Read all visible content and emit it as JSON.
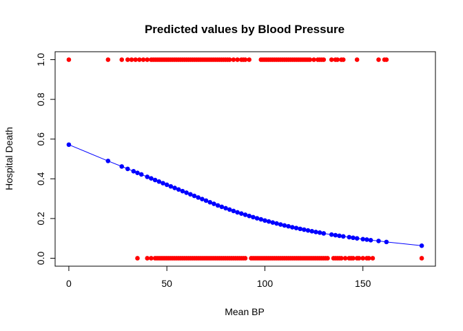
{
  "chart_data": {
    "type": "scatter",
    "title": "Predicted values by Blood Pressure",
    "xlabel": "Mean BP",
    "ylabel": "Hospital Death",
    "xlim": [
      -7,
      187
    ],
    "ylim": [
      -0.04,
      1.04
    ],
    "xticks": [
      "0",
      "50",
      "100",
      "150"
    ],
    "yticks": [
      "0.0",
      "0.2",
      "0.4",
      "0.6",
      "0.8",
      "1.0"
    ],
    "grid": false,
    "legend": "none",
    "colors": {
      "observed": "#ff0000",
      "predicted": "#0000ff",
      "line": "#0000ff"
    },
    "series": [
      {
        "values": [
          [
            0,
            1
          ],
          [
            20,
            1
          ],
          [
            27,
            1
          ],
          [
            30,
            1
          ],
          [
            32,
            1
          ],
          [
            34,
            1
          ],
          [
            36,
            1
          ],
          [
            38,
            1
          ],
          [
            40,
            1
          ],
          [
            42,
            1
          ],
          [
            43,
            1
          ],
          [
            44,
            1
          ],
          [
            45,
            1
          ],
          [
            46,
            1
          ],
          [
            47,
            1
          ],
          [
            48,
            1
          ],
          [
            49,
            1
          ],
          [
            50,
            1
          ],
          [
            51,
            1
          ],
          [
            52,
            1
          ],
          [
            53,
            1
          ],
          [
            54,
            1
          ],
          [
            55,
            1
          ],
          [
            56,
            1
          ],
          [
            57,
            1
          ],
          [
            58,
            1
          ],
          [
            59,
            1
          ],
          [
            60,
            1
          ],
          [
            61,
            1
          ],
          [
            62,
            1
          ],
          [
            63,
            1
          ],
          [
            64,
            1
          ],
          [
            65,
            1
          ],
          [
            66,
            1
          ],
          [
            67,
            1
          ],
          [
            68,
            1
          ],
          [
            69,
            1
          ],
          [
            70,
            1
          ],
          [
            71,
            1
          ],
          [
            72,
            1
          ],
          [
            73,
            1
          ],
          [
            74,
            1
          ],
          [
            75,
            1
          ],
          [
            76,
            1
          ],
          [
            77,
            1
          ],
          [
            78,
            1
          ],
          [
            79,
            1
          ],
          [
            80,
            1
          ],
          [
            81,
            1
          ],
          [
            82,
            1
          ],
          [
            84,
            1
          ],
          [
            86,
            1
          ],
          [
            88,
            1
          ],
          [
            89,
            1
          ],
          [
            90,
            1
          ],
          [
            92,
            1
          ],
          [
            98,
            1
          ],
          [
            99,
            1
          ],
          [
            100,
            1
          ],
          [
            101,
            1
          ],
          [
            102,
            1
          ],
          [
            103,
            1
          ],
          [
            104,
            1
          ],
          [
            105,
            1
          ],
          [
            106,
            1
          ],
          [
            107,
            1
          ],
          [
            108,
            1
          ],
          [
            109,
            1
          ],
          [
            110,
            1
          ],
          [
            111,
            1
          ],
          [
            112,
            1
          ],
          [
            113,
            1
          ],
          [
            114,
            1
          ],
          [
            115,
            1
          ],
          [
            116,
            1
          ],
          [
            117,
            1
          ],
          [
            118,
            1
          ],
          [
            119,
            1
          ],
          [
            120,
            1
          ],
          [
            121,
            1
          ],
          [
            122,
            1
          ],
          [
            123,
            1
          ],
          [
            125,
            1
          ],
          [
            127,
            1
          ],
          [
            128,
            1
          ],
          [
            129,
            1
          ],
          [
            130,
            1
          ],
          [
            134,
            1
          ],
          [
            136,
            1
          ],
          [
            137,
            1
          ],
          [
            139,
            1
          ],
          [
            140,
            1
          ],
          [
            147,
            1
          ],
          [
            158,
            1
          ],
          [
            161,
            1
          ],
          [
            162,
            1
          ]
        ]
      },
      {
        "values": [
          [
            35,
            0
          ],
          [
            40,
            0
          ],
          [
            42,
            0
          ],
          [
            44,
            0
          ],
          [
            45,
            0
          ],
          [
            46,
            0
          ],
          [
            47,
            0
          ],
          [
            48,
            0
          ],
          [
            49,
            0
          ],
          [
            50,
            0
          ],
          [
            51,
            0
          ],
          [
            52,
            0
          ],
          [
            53,
            0
          ],
          [
            54,
            0
          ],
          [
            55,
            0
          ],
          [
            56,
            0
          ],
          [
            57,
            0
          ],
          [
            58,
            0
          ],
          [
            59,
            0
          ],
          [
            60,
            0
          ],
          [
            61,
            0
          ],
          [
            62,
            0
          ],
          [
            63,
            0
          ],
          [
            64,
            0
          ],
          [
            65,
            0
          ],
          [
            66,
            0
          ],
          [
            67,
            0
          ],
          [
            68,
            0
          ],
          [
            69,
            0
          ],
          [
            70,
            0
          ],
          [
            71,
            0
          ],
          [
            72,
            0
          ],
          [
            73,
            0
          ],
          [
            74,
            0
          ],
          [
            75,
            0
          ],
          [
            76,
            0
          ],
          [
            77,
            0
          ],
          [
            78,
            0
          ],
          [
            79,
            0
          ],
          [
            80,
            0
          ],
          [
            81,
            0
          ],
          [
            82,
            0
          ],
          [
            83,
            0
          ],
          [
            84,
            0
          ],
          [
            85,
            0
          ],
          [
            86,
            0
          ],
          [
            87,
            0
          ],
          [
            88,
            0
          ],
          [
            89,
            0
          ],
          [
            90,
            0
          ],
          [
            93,
            0
          ],
          [
            94,
            0
          ],
          [
            95,
            0
          ],
          [
            96,
            0
          ],
          [
            97,
            0
          ],
          [
            98,
            0
          ],
          [
            99,
            0
          ],
          [
            100,
            0
          ],
          [
            101,
            0
          ],
          [
            102,
            0
          ],
          [
            103,
            0
          ],
          [
            104,
            0
          ],
          [
            105,
            0
          ],
          [
            106,
            0
          ],
          [
            107,
            0
          ],
          [
            108,
            0
          ],
          [
            109,
            0
          ],
          [
            110,
            0
          ],
          [
            111,
            0
          ],
          [
            112,
            0
          ],
          [
            113,
            0
          ],
          [
            114,
            0
          ],
          [
            115,
            0
          ],
          [
            116,
            0
          ],
          [
            117,
            0
          ],
          [
            118,
            0
          ],
          [
            119,
            0
          ],
          [
            120,
            0
          ],
          [
            121,
            0
          ],
          [
            122,
            0
          ],
          [
            123,
            0
          ],
          [
            124,
            0
          ],
          [
            125,
            0
          ],
          [
            126,
            0
          ],
          [
            127,
            0
          ],
          [
            128,
            0
          ],
          [
            129,
            0
          ],
          [
            130,
            0
          ],
          [
            131,
            0
          ],
          [
            132,
            0
          ],
          [
            135,
            0
          ],
          [
            136,
            0
          ],
          [
            137,
            0
          ],
          [
            138,
            0
          ],
          [
            139,
            0
          ],
          [
            141,
            0
          ],
          [
            143,
            0
          ],
          [
            144,
            0
          ],
          [
            145,
            0
          ],
          [
            147,
            0
          ],
          [
            148,
            0
          ],
          [
            150,
            0
          ],
          [
            152,
            0
          ],
          [
            153,
            0
          ],
          [
            155,
            0
          ],
          [
            180,
            0
          ]
        ]
      },
      {
        "values": [
          [
            0,
            0.572
          ],
          [
            20,
            0.49
          ],
          [
            27,
            0.462
          ],
          [
            30,
            0.45
          ],
          [
            33,
            0.438
          ],
          [
            35,
            0.43
          ],
          [
            37,
            0.422
          ],
          [
            40,
            0.41
          ],
          [
            42,
            0.402
          ],
          [
            44,
            0.394
          ],
          [
            46,
            0.386
          ],
          [
            48,
            0.378
          ],
          [
            50,
            0.37
          ],
          [
            52,
            0.362
          ],
          [
            54,
            0.354
          ],
          [
            56,
            0.346
          ],
          [
            58,
            0.338
          ],
          [
            60,
            0.33
          ],
          [
            62,
            0.322
          ],
          [
            64,
            0.314
          ],
          [
            66,
            0.306
          ],
          [
            68,
            0.298
          ],
          [
            70,
            0.29
          ],
          [
            72,
            0.282
          ],
          [
            74,
            0.274
          ],
          [
            76,
            0.266
          ],
          [
            78,
            0.259
          ],
          [
            80,
            0.252
          ],
          [
            82,
            0.245
          ],
          [
            84,
            0.238
          ],
          [
            86,
            0.231
          ],
          [
            88,
            0.225
          ],
          [
            90,
            0.219
          ],
          [
            92,
            0.213
          ],
          [
            94,
            0.207
          ],
          [
            96,
            0.201
          ],
          [
            98,
            0.196
          ],
          [
            100,
            0.19
          ],
          [
            102,
            0.185
          ],
          [
            104,
            0.18
          ],
          [
            106,
            0.175
          ],
          [
            108,
            0.17
          ],
          [
            110,
            0.165
          ],
          [
            112,
            0.161
          ],
          [
            114,
            0.156
          ],
          [
            116,
            0.152
          ],
          [
            118,
            0.148
          ],
          [
            120,
            0.144
          ],
          [
            122,
            0.14
          ],
          [
            124,
            0.136
          ],
          [
            126,
            0.132
          ],
          [
            128,
            0.129
          ],
          [
            130,
            0.125
          ],
          [
            134,
            0.119
          ],
          [
            136,
            0.116
          ],
          [
            138,
            0.113
          ],
          [
            140,
            0.11
          ],
          [
            143,
            0.106
          ],
          [
            145,
            0.103
          ],
          [
            147,
            0.1
          ],
          [
            150,
            0.096
          ],
          [
            152,
            0.094
          ],
          [
            154,
            0.091
          ],
          [
            158,
            0.087
          ],
          [
            162,
            0.082
          ],
          [
            180,
            0.063
          ]
        ]
      }
    ]
  }
}
